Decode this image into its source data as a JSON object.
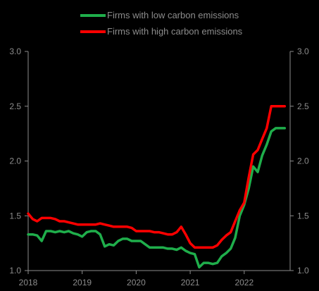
{
  "chart_data": {
    "type": "line",
    "title": "",
    "xlabel": "",
    "ylabel": "",
    "x_ticks": [
      "2018",
      "2019",
      "2020",
      "2021",
      "2022"
    ],
    "y_ticks": [
      "1.0",
      "1.5",
      "2.0",
      "2.5",
      "3.0"
    ],
    "xlim": [
      2018.0,
      2022.85
    ],
    "ylim": [
      1.0,
      3.0
    ],
    "grid": false,
    "legend": "top-center",
    "x": [
      2018.0,
      2018.083,
      2018.167,
      2018.25,
      2018.333,
      2018.417,
      2018.5,
      2018.583,
      2018.667,
      2018.75,
      2018.833,
      2018.917,
      2019.0,
      2019.083,
      2019.167,
      2019.25,
      2019.333,
      2019.417,
      2019.5,
      2019.583,
      2019.667,
      2019.75,
      2019.833,
      2019.917,
      2020.0,
      2020.083,
      2020.167,
      2020.25,
      2020.333,
      2020.417,
      2020.5,
      2020.583,
      2020.667,
      2020.75,
      2020.833,
      2020.917,
      2021.0,
      2021.083,
      2021.167,
      2021.25,
      2021.333,
      2021.417,
      2021.5,
      2021.583,
      2021.667,
      2021.75,
      2021.833,
      2021.917,
      2022.0,
      2022.083,
      2022.167,
      2022.25,
      2022.333,
      2022.417,
      2022.5,
      2022.583,
      2022.667,
      2022.75
    ],
    "series": [
      {
        "name": "Firms with low carbon emissions",
        "color": "#1fae4b",
        "values": [
          1.33,
          1.33,
          1.32,
          1.27,
          1.36,
          1.36,
          1.35,
          1.36,
          1.35,
          1.36,
          1.34,
          1.33,
          1.31,
          1.35,
          1.36,
          1.36,
          1.33,
          1.22,
          1.24,
          1.23,
          1.27,
          1.29,
          1.29,
          1.27,
          1.27,
          1.27,
          1.24,
          1.21,
          1.21,
          1.21,
          1.21,
          1.2,
          1.2,
          1.19,
          1.21,
          1.18,
          1.16,
          1.15,
          1.03,
          1.07,
          1.07,
          1.06,
          1.07,
          1.13,
          1.16,
          1.2,
          1.3,
          1.5,
          1.6,
          1.75,
          1.95,
          1.9,
          2.05,
          2.15,
          2.27,
          2.3,
          2.3,
          2.3
        ]
      },
      {
        "name": "Firms with high carbon emissions",
        "color": "#ff0000",
        "values": [
          1.52,
          1.47,
          1.45,
          1.48,
          1.48,
          1.48,
          1.47,
          1.45,
          1.45,
          1.44,
          1.43,
          1.42,
          1.42,
          1.42,
          1.42,
          1.42,
          1.43,
          1.42,
          1.41,
          1.4,
          1.4,
          1.4,
          1.4,
          1.39,
          1.36,
          1.36,
          1.36,
          1.36,
          1.35,
          1.35,
          1.34,
          1.33,
          1.33,
          1.35,
          1.4,
          1.33,
          1.25,
          1.21,
          1.21,
          1.21,
          1.21,
          1.21,
          1.23,
          1.28,
          1.32,
          1.35,
          1.45,
          1.55,
          1.62,
          1.85,
          2.06,
          2.1,
          2.2,
          2.3,
          2.5,
          2.5,
          2.5,
          2.5
        ]
      }
    ]
  }
}
